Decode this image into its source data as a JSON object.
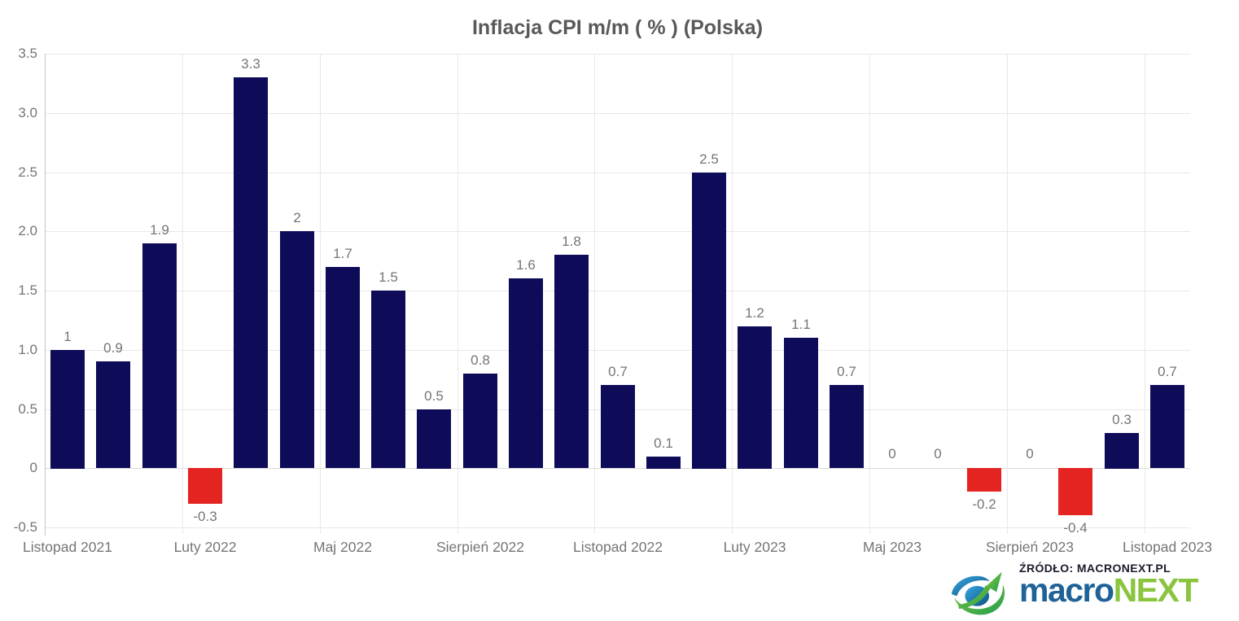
{
  "title": "Inflacja CPI m/m ( % ) (Polska)",
  "chart_data": {
    "type": "bar",
    "title": "Inflacja CPI m/m ( % ) (Polska)",
    "values": [
      1,
      0.9,
      1.9,
      -0.3,
      3.3,
      2,
      1.7,
      1.5,
      0.5,
      0.8,
      1.6,
      1.8,
      0.7,
      0.1,
      2.5,
      1.2,
      1.1,
      0.7,
      0,
      0,
      -0.2,
      0,
      -0.4,
      0.3,
      0.7
    ],
    "bar_labels": [
      "1",
      "0.9",
      "1.9",
      "-0.3",
      "3.3",
      "2",
      "1.7",
      "1.5",
      "0.5",
      "0.8",
      "1.6",
      "1.8",
      "0.7",
      "0.1",
      "2.5",
      "1.2",
      "1.1",
      "0.7",
      "0",
      "0",
      "-0.2",
      "0",
      "-0.4",
      "0.3",
      "0.7"
    ],
    "x_tick_labels": [
      "Listopad 2021",
      "Luty 2022",
      "Maj 2022",
      "Sierpień 2022",
      "Listopad 2022",
      "Luty 2023",
      "Maj 2023",
      "Sierpień 2023",
      "Listopad 2023"
    ],
    "x_tick_every": 3,
    "y_ticks": [
      3.5,
      3.0,
      2.5,
      2.0,
      1.5,
      1.0,
      0.5,
      0,
      -0.5
    ],
    "y_tick_labels": [
      "3.5",
      "3.0",
      "2.5",
      "2.0",
      "1.5",
      "1.0",
      "0.5",
      "0",
      "-0.5"
    ],
    "ylim": [
      -0.5,
      3.5
    ],
    "xlabel": "",
    "ylabel": "",
    "grid": true,
    "legend": "none",
    "colors": {
      "positive": "#0e0c59",
      "negative": "#e32421",
      "grid": "#e8e8e8",
      "zero_line": "#dadada",
      "axis": "#c6c6c6",
      "label": "#757575",
      "title": "#595959"
    }
  },
  "source": {
    "line": "ŹRÓDŁO: MACRONEXT.PL",
    "line_color": "#1b1b2d",
    "brand_macro": "macro",
    "brand_next": "NEXT",
    "brand_macro_color": "#1f6298",
    "brand_next_color": "#8bc53f"
  }
}
